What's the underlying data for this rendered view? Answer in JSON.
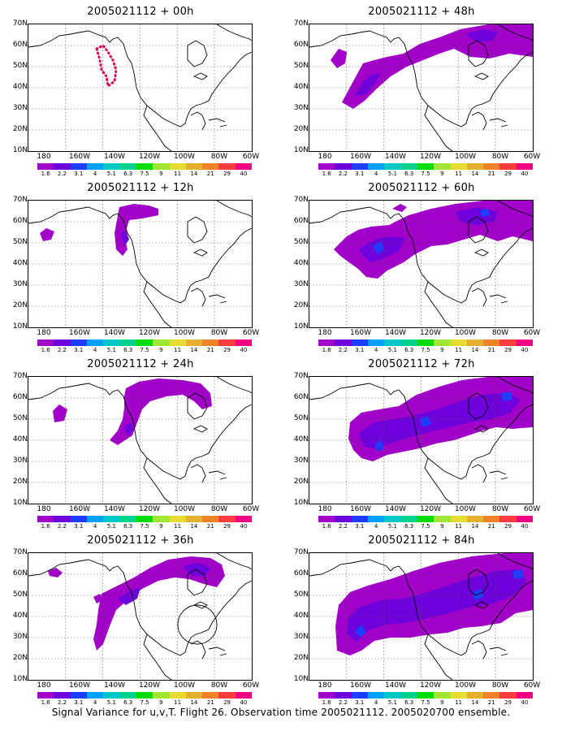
{
  "panels": [
    {
      "title": "2005021112 + 00h"
    },
    {
      "title": "2005021112 + 48h"
    },
    {
      "title": "2005021112 + 12h"
    },
    {
      "title": "2005021112 + 60h"
    },
    {
      "title": "2005021112 + 24h"
    },
    {
      "title": "2005021112 + 72h"
    },
    {
      "title": "2005021112 + 36h"
    },
    {
      "title": "2005021112 + 84h"
    }
  ],
  "lat_labels": [
    "70N",
    "60N",
    "50N",
    "40N",
    "30N",
    "20N",
    "10N"
  ],
  "lon_labels": [
    "180",
    "160W",
    "140W",
    "120W",
    "100W",
    "80W",
    "60W"
  ],
  "colorbar": {
    "labels": [
      "1.6",
      "2.2",
      "3.1",
      "4",
      "5.1",
      "6.3",
      "7.5",
      "9",
      "11",
      "14",
      "21",
      "29",
      "40"
    ],
    "colors": [
      "#a000c8",
      "#6e00dc",
      "#1e3cff",
      "#00a0ff",
      "#00c8c8",
      "#00d28c",
      "#00dc00",
      "#a0e632",
      "#e6dc32",
      "#e6af2d",
      "#f08228",
      "#fa3c3c",
      "#f00082"
    ]
  },
  "caption": "Signal Variance for u,v,T. Flight 26. Observation time 2005021112. 2005020700 ensemble."
}
